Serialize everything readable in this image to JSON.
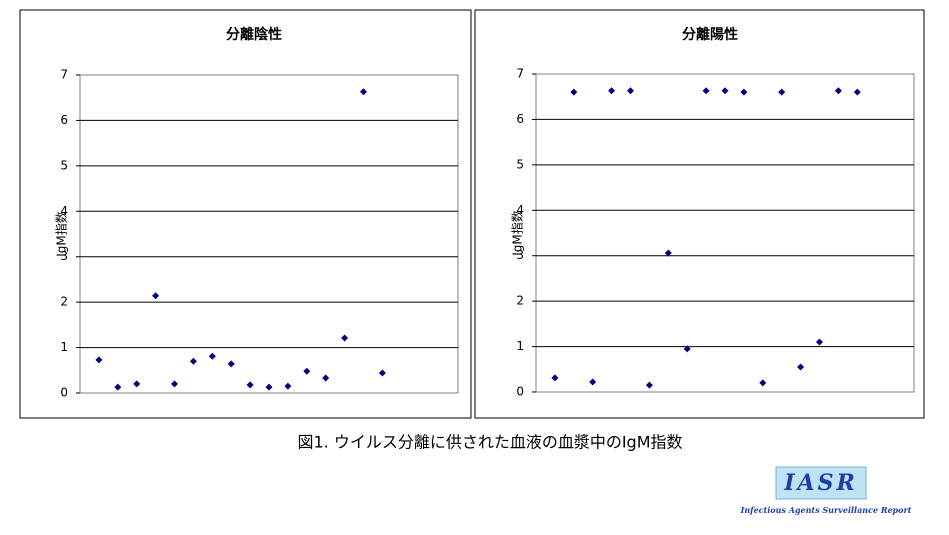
{
  "chart_data": [
    {
      "type": "scatter",
      "title": "分離陰性",
      "y_label": "IgM指数",
      "x": [
        1,
        2,
        3,
        4,
        5,
        6,
        7,
        8,
        9,
        10,
        11,
        12,
        13,
        14,
        15,
        16
      ],
      "series": [
        {
          "color": "#000080",
          "values": [
            0.73,
            0.13,
            0.2,
            2.14,
            0.2,
            0.7,
            0.81,
            0.64,
            0.18,
            0.13,
            0.15,
            0.48,
            0.33,
            1.21,
            6.63,
            0.44
          ]
        }
      ],
      "xlim": [
        0,
        20
      ],
      "ylim": [
        0,
        7
      ],
      "yticks": [
        0,
        1,
        2,
        3,
        4,
        5,
        6,
        7
      ],
      "grid": true
    },
    {
      "type": "scatter",
      "title": "分離陽性",
      "y_label": "IgM指数",
      "x": [
        1,
        2,
        3,
        4,
        5,
        6,
        7,
        8,
        9,
        10,
        11,
        12,
        13,
        14,
        15,
        16,
        17
      ],
      "series": [
        {
          "color": "#000080",
          "values": [
            0.31,
            6.6,
            0.22,
            6.63,
            6.63,
            0.15,
            3.06,
            0.95,
            6.63,
            6.63,
            6.6,
            0.2,
            6.6,
            0.55,
            1.1,
            6.63,
            6.6
          ]
        }
      ],
      "xlim": [
        0,
        20
      ],
      "ylim": [
        0,
        7
      ],
      "yticks": [
        0,
        1,
        2,
        3,
        4,
        5,
        6,
        7
      ],
      "grid": true
    }
  ],
  "caption": "図1. ウイルス分離に供された血液の血漿中のIgM指数",
  "logo": {
    "text": "IASR",
    "subtitle": "Infectious Agents Surveillance Report"
  }
}
